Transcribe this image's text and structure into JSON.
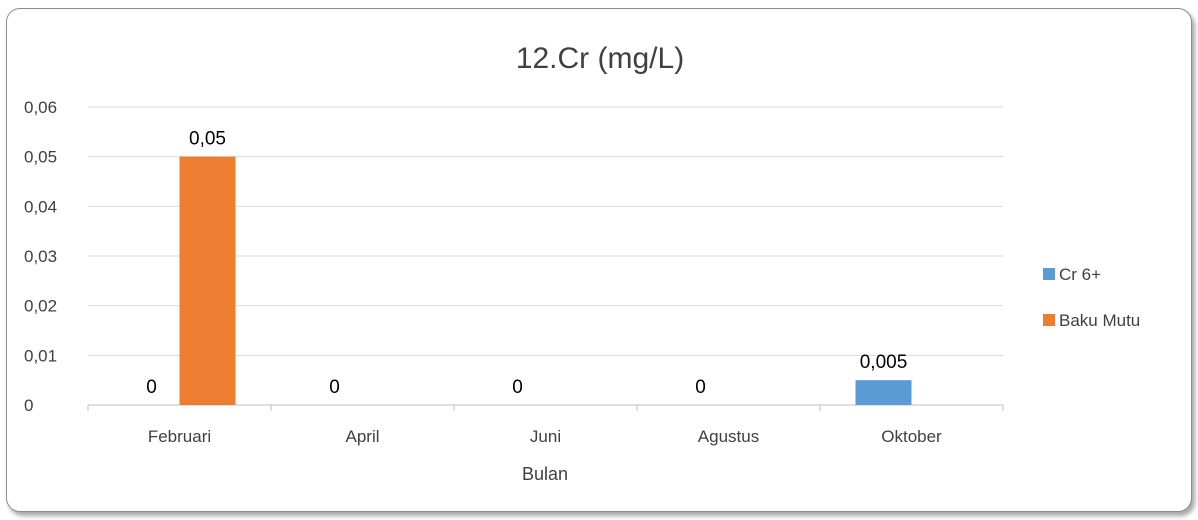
{
  "chart_data": {
    "type": "bar",
    "title": "12.Cr (mg/L)",
    "xlabel": "Bulan",
    "ylabel": "",
    "categories": [
      "Februari",
      "April",
      "Juni",
      "Agustus",
      "Oktober"
    ],
    "series": [
      {
        "name": "Cr 6+",
        "color": "#5b9bd5",
        "values": [
          0,
          0,
          0,
          0,
          0.005
        ],
        "labels": [
          "0",
          "0",
          "0",
          "0",
          "0,005"
        ]
      },
      {
        "name": "Baku Mutu",
        "color": "#ed7d31",
        "values": [
          0.05,
          null,
          null,
          null,
          null
        ],
        "labels": [
          "0,05",
          "",
          "",
          "",
          ""
        ]
      }
    ],
    "ylim": [
      0,
      0.06
    ],
    "yticks": [
      0,
      0.01,
      0.02,
      0.03,
      0.04,
      0.05,
      0.06
    ],
    "ytick_labels": [
      "0",
      "0,01",
      "0,02",
      "0,03",
      "0,04",
      "0,05",
      "0,06"
    ],
    "grid": true,
    "legend_position": "right"
  }
}
